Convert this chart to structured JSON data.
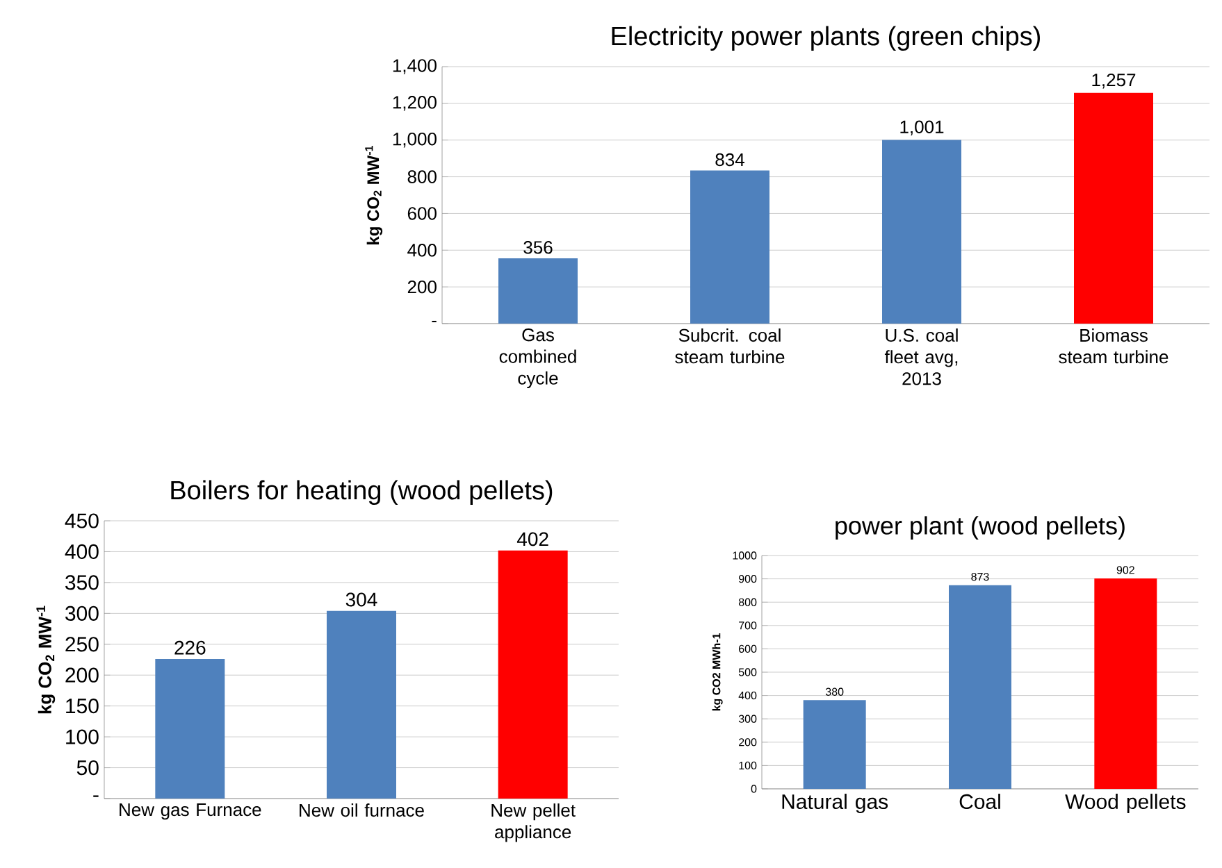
{
  "chart_data": [
    {
      "type": "bar",
      "title": "Electricity power plants (green chips)",
      "ylabel": "kg CO$_{2}$ MW$^{-1}$",
      "categories": [
        "Gas combined cycle",
        "Subcrit. coal steam turbine",
        "U.S. coal fleet avg, 2013",
        "Biomass steam turbine"
      ],
      "values": [
        356,
        834,
        1001,
        1257
      ],
      "colors": [
        "#4f81bd",
        "#4f81bd",
        "#4f81bd",
        "#ff0000"
      ],
      "value_labels": [
        "356",
        "834",
        "1,001",
        "1,257"
      ],
      "ylim": [
        0,
        1400
      ],
      "yticks": [
        {
          "value": 0,
          "label": "-"
        },
        200,
        400,
        600,
        800,
        {
          "value": 1000,
          "label": "1,000"
        },
        {
          "value": 1200,
          "label": "1,200"
        },
        {
          "value": 1400,
          "label": "1,400"
        }
      ],
      "grid": "y"
    },
    {
      "type": "bar",
      "title": "Boilers for heating (wood pellets)",
      "ylabel": "kg CO$_{2}$ MW$^{-1}$",
      "categories": [
        "New gas Furnace",
        "New oil furnace",
        "New pellet appliance"
      ],
      "values": [
        226,
        304,
        402
      ],
      "colors": [
        "#4f81bd",
        "#4f81bd",
        "#ff0000"
      ],
      "value_labels": [
        "226",
        "304",
        "402"
      ],
      "ylim": [
        0,
        450
      ],
      "yticks": [
        {
          "value": 0,
          "label": "-"
        },
        50,
        100,
        150,
        200,
        250,
        300,
        350,
        400,
        450
      ],
      "grid": "y"
    },
    {
      "type": "bar",
      "title": "power plant (wood pellets)",
      "ylabel": "kg CO2 MWh-1",
      "categories": [
        "Natural gas",
        "Coal",
        "Wood pellets"
      ],
      "values": [
        380,
        873,
        902
      ],
      "colors": [
        "#4f81bd",
        "#4f81bd",
        "#ff0000"
      ],
      "value_labels": [
        "380",
        "873",
        "902"
      ],
      "ylim": [
        0,
        1000
      ],
      "yticks": [
        0,
        100,
        200,
        300,
        400,
        500,
        600,
        700,
        800,
        900,
        1000
      ],
      "grid": "y"
    }
  ]
}
